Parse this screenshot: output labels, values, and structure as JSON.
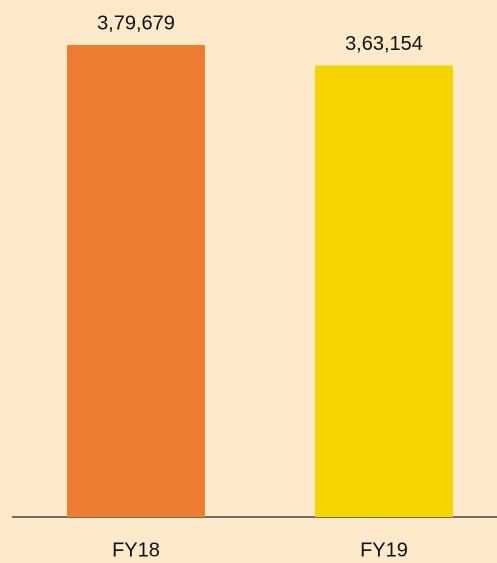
{
  "chart_data": {
    "type": "bar",
    "categories": [
      "FY18",
      "FY19"
    ],
    "values": [
      379679,
      363154
    ],
    "value_labels": [
      "3,79,679",
      "3,63,154"
    ],
    "colors": [
      "#ed7d31",
      "#f5d400"
    ]
  }
}
